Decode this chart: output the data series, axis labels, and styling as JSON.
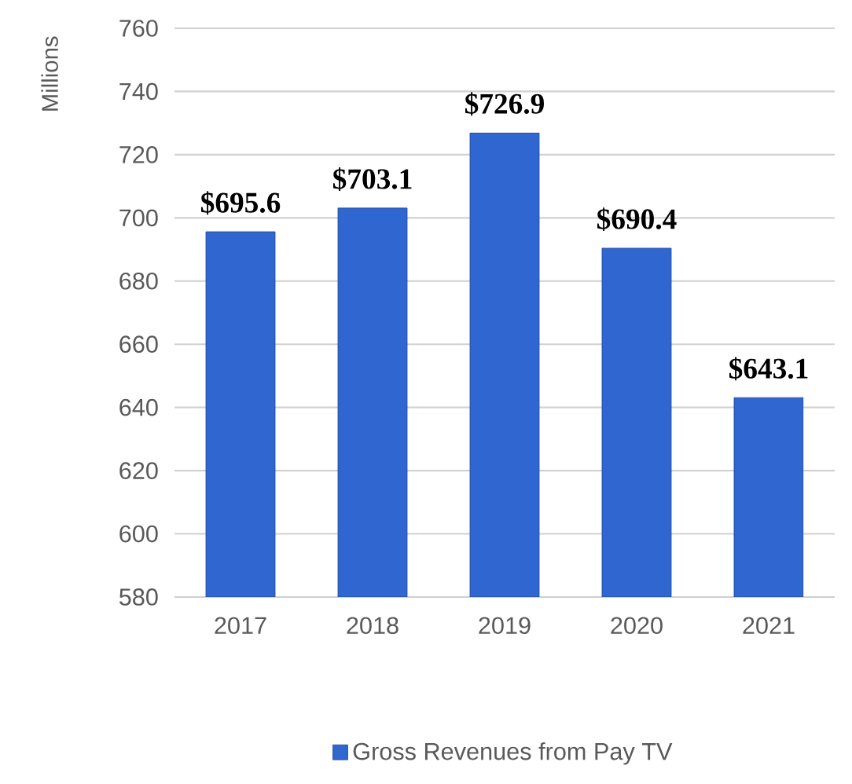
{
  "chart_data": {
    "type": "bar",
    "ylabel": "Millions",
    "categories": [
      "2017",
      "2018",
      "2019",
      "2020",
      "2021"
    ],
    "series": [
      {
        "name": "Gross Revenues from Pay TV",
        "color": "#2f66d0",
        "values": [
          695.6,
          703.1,
          726.9,
          690.4,
          643.1
        ],
        "value_labels": [
          "$695.6",
          "$703.1",
          "$726.9",
          "$690.4",
          "$643.1"
        ]
      }
    ],
    "ylim": [
      580,
      760
    ],
    "yticks": [
      580,
      600,
      620,
      640,
      660,
      680,
      700,
      720,
      740,
      760
    ],
    "grid": "y",
    "legend": "bottom"
  }
}
